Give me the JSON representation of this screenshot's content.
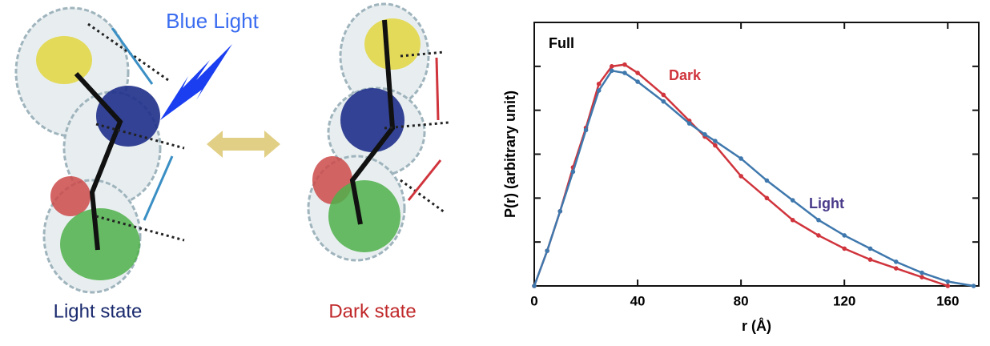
{
  "illustration": {
    "blue_light": "Blue Light",
    "light_state": "Light state",
    "dark_state": "Dark state"
  },
  "chart_data": {
    "type": "line",
    "annotation": "Full",
    "x_label": "r (Å)",
    "y_label": "P(r) (arbitrary unit)",
    "x": [
      0,
      5,
      10,
      15,
      20,
      25,
      30,
      35,
      40,
      50,
      60,
      66,
      70,
      80,
      90,
      100,
      110,
      120,
      130,
      140,
      150,
      160,
      170
    ],
    "series": [
      {
        "name": "Dark",
        "color": "#d0343c",
        "values": [
          0,
          0.8,
          1.7,
          2.7,
          3.6,
          4.6,
          5.0,
          5.04,
          4.85,
          4.35,
          3.76,
          3.4,
          3.2,
          2.5,
          2.0,
          1.5,
          1.15,
          0.85,
          0.6,
          0.4,
          0.2,
          0,
          null
        ]
      },
      {
        "name": "Light",
        "color": "#3f78ad",
        "values": [
          0,
          0.8,
          1.7,
          2.6,
          3.55,
          4.45,
          4.9,
          4.85,
          4.65,
          4.2,
          3.7,
          3.45,
          3.3,
          2.9,
          2.4,
          1.95,
          1.5,
          1.15,
          0.85,
          0.55,
          0.3,
          0.1,
          0
        ]
      }
    ],
    "xlim": [
      0,
      172
    ],
    "xticks": [
      0,
      40,
      80,
      120,
      160
    ],
    "ylim": [
      0,
      6
    ],
    "yticks": [
      0,
      1,
      2,
      3,
      4,
      5,
      6
    ]
  }
}
